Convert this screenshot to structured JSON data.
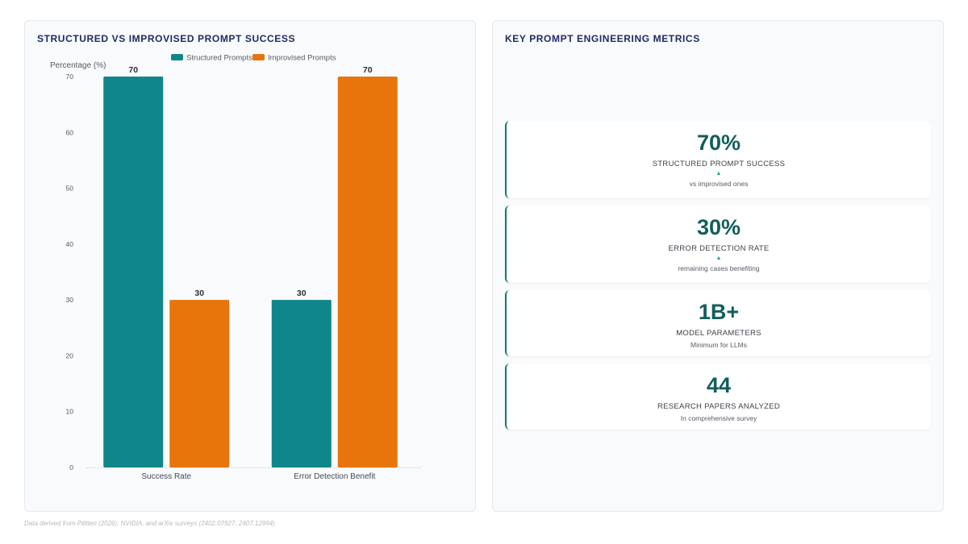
{
  "left_panel": {
    "title": "STRUCTURED VS IMPROVISED PROMPT SUCCESS"
  },
  "right_panel": {
    "title": "KEY PROMPT ENGINEERING METRICS"
  },
  "chart_data": {
    "type": "bar",
    "categories": [
      "Success Rate",
      "Error Detection Benefit"
    ],
    "series": [
      {
        "name": "Structured Prompts",
        "values": [
          70,
          30
        ],
        "color": "#0f868a"
      },
      {
        "name": "Improvised Prompts",
        "values": [
          30,
          70
        ],
        "color": "#e8740c"
      }
    ],
    "ylabel": "Percentage (%)",
    "ylim": [
      0,
      70
    ],
    "yticks": [
      0,
      10,
      20,
      30,
      40,
      50,
      60,
      70
    ],
    "grid": false,
    "legend": "top-center",
    "data_labels": true
  },
  "metrics": [
    {
      "value": "70%",
      "label": "STRUCTURED PROMPT SUCCESS",
      "arrow": "▲",
      "sub": "vs improvised ones"
    },
    {
      "value": "30%",
      "label": "ERROR DETECTION RATE",
      "arrow": "▲",
      "sub": "remaining cases benefiting"
    },
    {
      "value": "1B+",
      "label": "MODEL PARAMETERS",
      "sub": "Minimum for LLMs"
    },
    {
      "value": "44",
      "label": "RESEARCH PAPERS ANALYZED",
      "sub": "In comprehensive survey"
    }
  ],
  "footer": "Data derived from Pilitten (2026), NVIDIA, and arXiv surveys (2402.07927, 2407.12994)",
  "colors": {
    "accent": "#137a73",
    "title": "#1f2a63"
  }
}
